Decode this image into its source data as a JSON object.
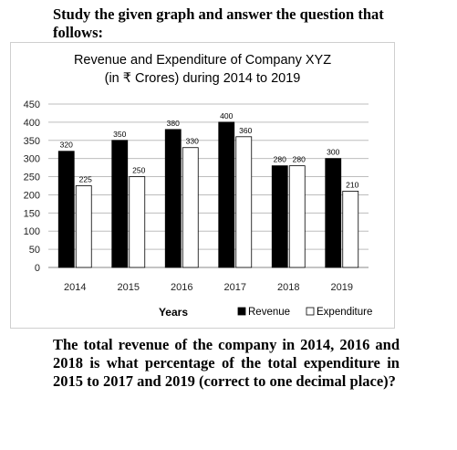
{
  "intro_text": "Study the given graph and answer the question that follows:",
  "question_text": "The total revenue of the company in 2014, 2016 and 2018 is what percentage of the total expenditure in 2015 to 2017 and 2019 (correct to one decimal place)?",
  "colors": {
    "revenue": "#000000",
    "expenditure": "#ffffff",
    "grid": "#bdbdbd"
  },
  "chart_data": {
    "type": "bar",
    "title": "Revenue and Expenditure of Company XYZ",
    "subtitle": "(in ₹ Crores) during 2014 to 2019",
    "xlabel": "Years",
    "ylabel": "",
    "ylim": [
      0,
      450
    ],
    "yticks": [
      0,
      50,
      100,
      150,
      200,
      250,
      300,
      350,
      400,
      450
    ],
    "grid": true,
    "legend_position": "bottom-right",
    "categories": [
      "2014",
      "2015",
      "2016",
      "2017",
      "2018",
      "2019"
    ],
    "series": [
      {
        "name": "Revenue",
        "values": [
          320,
          350,
          380,
          400,
          280,
          300
        ]
      },
      {
        "name": "Expenditure",
        "values": [
          225,
          250,
          330,
          360,
          280,
          210
        ]
      }
    ]
  }
}
